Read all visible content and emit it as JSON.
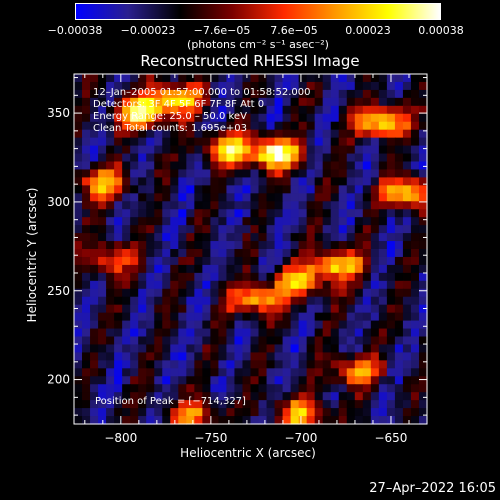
{
  "colorbar": {
    "min": -0.00038,
    "max": 0.00038,
    "ticks": [
      "−0.00038",
      "−0.00023",
      "−7.6e−05",
      "7.6e−05",
      "0.00023",
      "0.00038"
    ],
    "unit_label": "(photons cm⁻² s⁻¹ asec⁻²)",
    "stops": [
      "#0000ff",
      "#2a1f8f",
      "#000000",
      "#7a0000",
      "#ff2a00",
      "#ff9900",
      "#ffff00",
      "#ffffff"
    ]
  },
  "chart_data": {
    "type": "heatmap",
    "title": "Reconstructed RHESSI Image",
    "xlabel": "Heliocentric X (arcsec)",
    "ylabel": "Heliocentric Y (arcsec)",
    "xlim": [
      -826,
      -630
    ],
    "ylim": [
      175,
      372
    ],
    "x_ticks": [
      -800,
      -750,
      -700,
      -650
    ],
    "y_ticks": [
      200,
      250,
      300,
      350
    ],
    "x_tick_labels": [
      "−800",
      "−750",
      "−700",
      "−650"
    ],
    "y_tick_labels": [
      "200",
      "250",
      "300",
      "350"
    ],
    "annotations": [
      "12–Jan–2005 01:57:00.000 to 01:58:52.000",
      "Detectors: 3F 4F 5F 6F 7F 8F  Att 0",
      "Energy Range: 25.0 – 50.0 keV",
      "Clean     Total counts: 1.695e+03"
    ],
    "peak_text": "Position of Peak = [−714,327]",
    "peak": [
      -714,
      327
    ],
    "hotspots": [
      {
        "x": -790,
        "y": 350,
        "level": 0.9
      },
      {
        "x": -770,
        "y": 358,
        "level": 0.85
      },
      {
        "x": -740,
        "y": 330,
        "level": 0.8
      },
      {
        "x": -714,
        "y": 327,
        "level": 1.0
      },
      {
        "x": -810,
        "y": 310,
        "level": 0.75
      },
      {
        "x": -655,
        "y": 345,
        "level": 0.9
      },
      {
        "x": -640,
        "y": 305,
        "level": 0.85
      },
      {
        "x": -680,
        "y": 265,
        "level": 0.8
      },
      {
        "x": -700,
        "y": 255,
        "level": 0.7
      },
      {
        "x": -725,
        "y": 245,
        "level": 0.75
      },
      {
        "x": -670,
        "y": 205,
        "level": 0.65
      },
      {
        "x": -805,
        "y": 268,
        "level": 0.55
      },
      {
        "x": -760,
        "y": 180,
        "level": 0.6
      },
      {
        "x": -700,
        "y": 180,
        "level": 0.7
      }
    ]
  },
  "timestamp": "27–Apr–2022 16:05"
}
